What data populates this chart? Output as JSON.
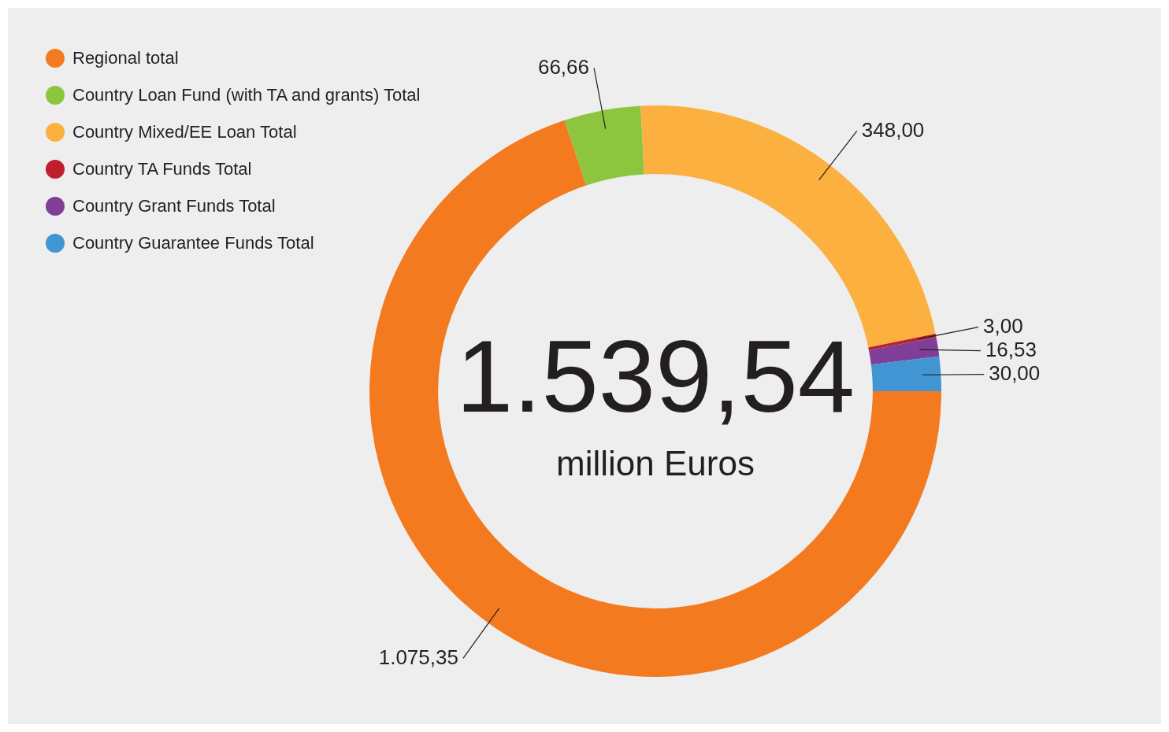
{
  "chart_data": {
    "type": "donut",
    "categories": [
      "Regional total",
      "Country Loan Fund (with TA and grants) Total",
      "Country Mixed/EE Loan Total",
      "Country TA Funds Total",
      "Country Grant Funds Total",
      "Country Guarantee Funds Total"
    ],
    "values": [
      1075.35,
      66.66,
      348.0,
      3.0,
      16.53,
      30.0
    ],
    "value_labels": [
      "1.075,35",
      "66,66",
      "348,00",
      "3,00",
      "16,53",
      "30,00"
    ],
    "colors": [
      "#f47a20",
      "#8cc63f",
      "#fbb040",
      "#be1e2d",
      "#7f3f98",
      "#4095d2"
    ],
    "annotations": [
      "1.539,54",
      "million Euros"
    ],
    "legend": "top left"
  }
}
